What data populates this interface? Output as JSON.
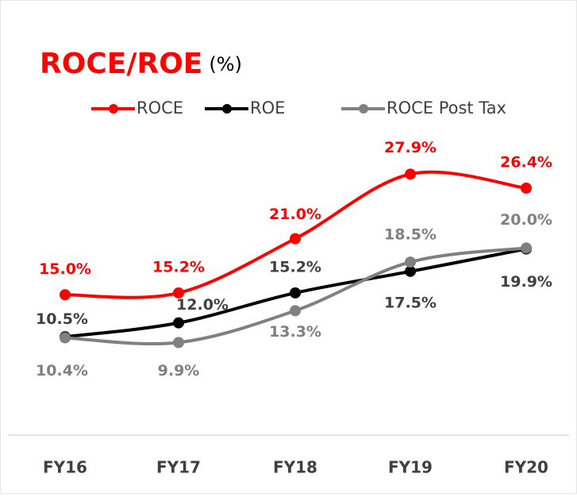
{
  "chart_data": {
    "type": "line",
    "title": "ROCE/ROE",
    "subtitle": "(%)",
    "categories": [
      "FY16",
      "FY17",
      "FY18",
      "FY19",
      "FY20"
    ],
    "ylim": [
      0,
      30
    ],
    "series": [
      {
        "name": "ROCE",
        "color": "#ff0000",
        "values": [
          15.0,
          15.2,
          21.0,
          27.9,
          26.4
        ],
        "value_labels": [
          "15.0%",
          "15.2%",
          "21.0%",
          "27.9%",
          "26.4%"
        ]
      },
      {
        "name": "ROE",
        "color": "#000000",
        "values": [
          10.5,
          12.0,
          15.2,
          17.5,
          19.9
        ],
        "value_labels": [
          "10.5%",
          "12.0%",
          "15.2%",
          "17.5%",
          "19.9%"
        ]
      },
      {
        "name": "ROCE Post Tax",
        "color": "#808080",
        "values": [
          10.4,
          9.9,
          13.3,
          18.5,
          20.0
        ],
        "value_labels": [
          "10.4%",
          "9.9%",
          "13.3%",
          "18.5%",
          "20.0%"
        ]
      }
    ]
  }
}
